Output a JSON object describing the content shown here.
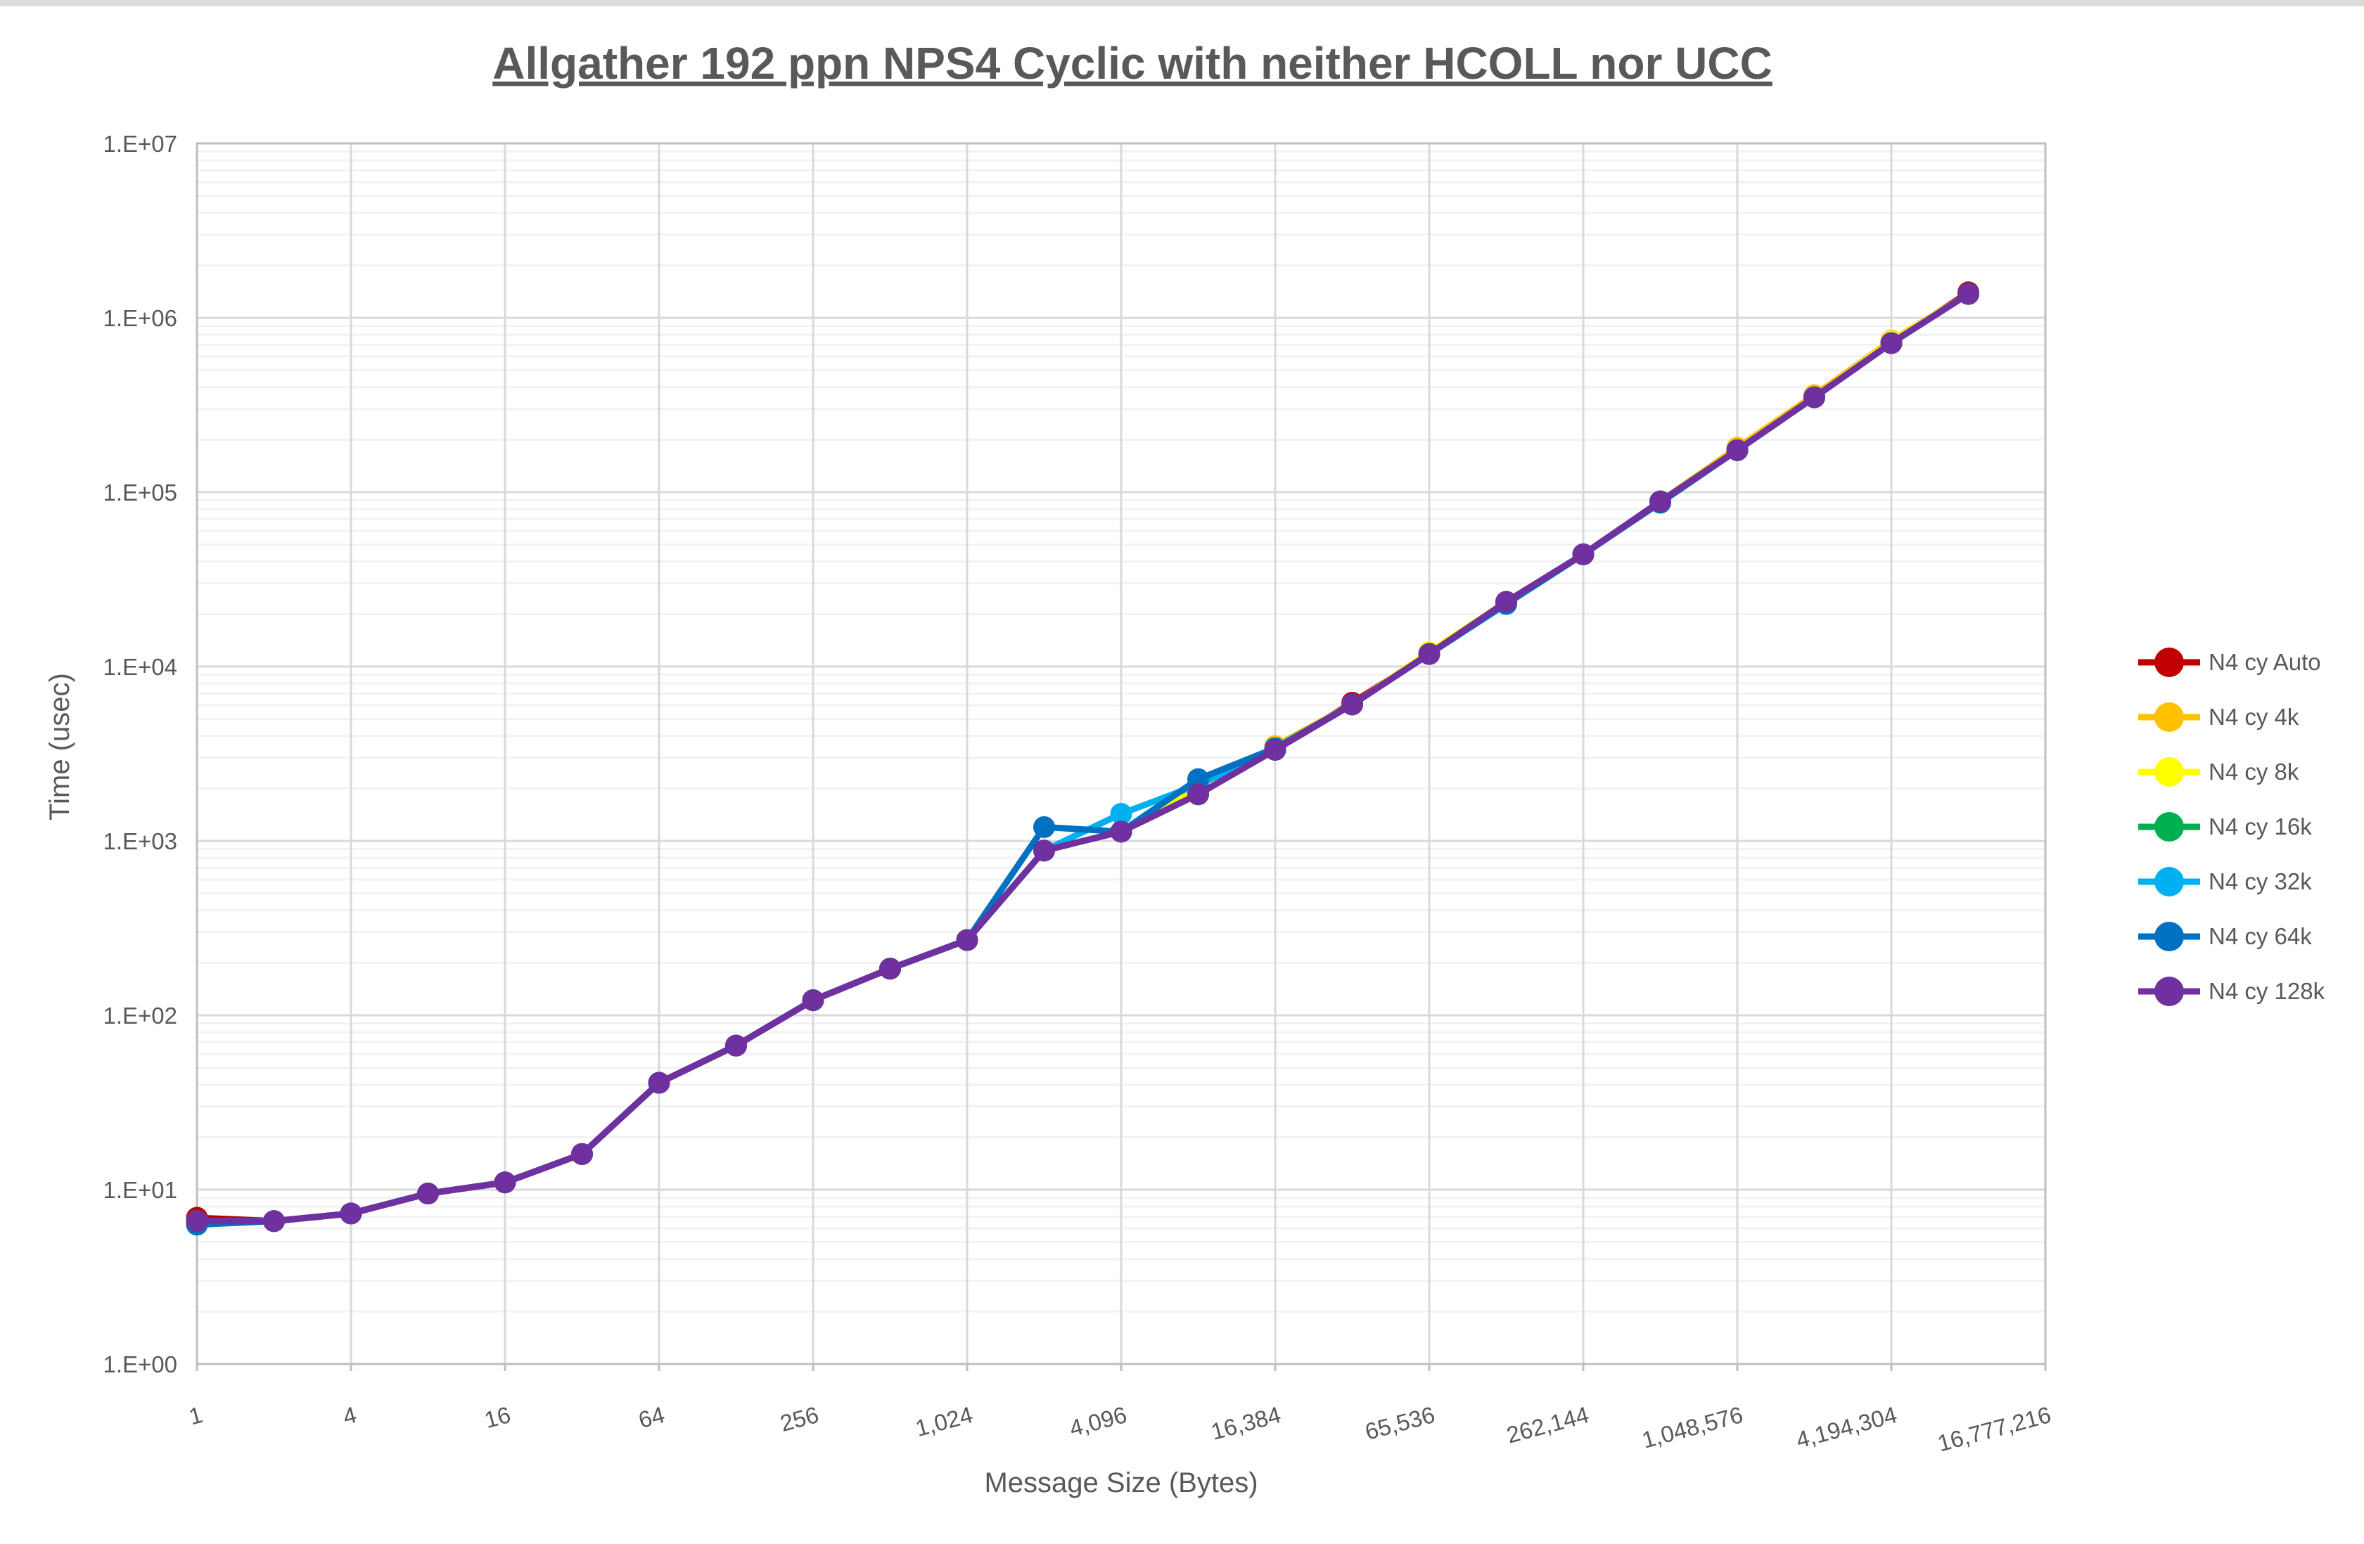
{
  "page": {
    "background": "#FFFFFF",
    "top_strip_color": "#DBDBDB"
  },
  "styles": {
    "text_color": "#595959",
    "major_grid_color": "#D9D9D9",
    "minor_grid_color": "#F2F2F2",
    "axis_line_color": "#BFBFBF"
  },
  "chart_data": {
    "type": "line",
    "title": "Allgather 192 ppn NPS4 Cyclic with neither HCOLL nor UCC",
    "xlabel": "Message Size (Bytes)",
    "ylabel": "Time (usec)",
    "x_scale": "log2",
    "y_scale": "log10",
    "xlim": [
      1,
      16777216
    ],
    "ylim": [
      1,
      10000000
    ],
    "grid": {
      "y_minor": true,
      "y_major": true,
      "x_major": true
    },
    "legend_position": "right",
    "x_tick_labels": [
      "1",
      "4",
      "16",
      "64",
      "256",
      "1,024",
      "4,096",
      "16,384",
      "65,536",
      "262,144",
      "1,048,576",
      "4,194,304",
      "16,777,216"
    ],
    "y_tick_labels": [
      "1.E+00",
      "1.E+01",
      "1.E+02",
      "1.E+03",
      "1.E+04",
      "1.E+05",
      "1.E+06",
      "1.E+07"
    ],
    "x": [
      1,
      2,
      4,
      8,
      16,
      32,
      64,
      128,
      256,
      512,
      1024,
      2048,
      4096,
      8192,
      16384,
      32768,
      65536,
      131072,
      262144,
      524288,
      1048576,
      2097152,
      4194304,
      8388608
    ],
    "series": [
      {
        "name": "N4 cy Auto",
        "color": "#C00000",
        "values": [
          6.9,
          6.6,
          7.3,
          9.5,
          11,
          16,
          41,
          67,
          122,
          185,
          270,
          880,
          1130,
          1850,
          3330,
          6200,
          11800,
          23500,
          44000,
          88500,
          174000,
          350000,
          716000,
          1400000
        ]
      },
      {
        "name": "N4 cy 4k",
        "color": "#FFC000",
        "values": [
          6.6,
          6.6,
          7.3,
          9.5,
          11,
          16,
          41,
          67,
          122,
          185,
          270,
          880,
          1130,
          1850,
          3500,
          6060,
          11800,
          23500,
          44000,
          88500,
          180000,
          360000,
          740000,
          1370000
        ]
      },
      {
        "name": "N4 cy 8k",
        "color": "#FFFF00",
        "values": [
          6.6,
          6.6,
          7.3,
          9.5,
          11,
          16,
          41,
          67,
          122,
          185,
          270,
          880,
          1130,
          2000,
          3330,
          6060,
          12100,
          23500,
          44000,
          88500,
          174000,
          350000,
          730000,
          1370000
        ]
      },
      {
        "name": "N4 cy 16k",
        "color": "#00B050",
        "values": [
          6.6,
          6.6,
          7.3,
          9.5,
          11,
          16,
          41,
          67,
          122,
          185,
          270,
          880,
          1130,
          1850,
          3330,
          6060,
          11800,
          23500,
          44000,
          88500,
          174000,
          350000,
          716000,
          1370000
        ]
      },
      {
        "name": "N4 cy 32k",
        "color": "#00B0F0",
        "values": [
          6.6,
          6.6,
          7.3,
          9.5,
          11,
          16,
          41,
          67,
          122,
          185,
          270,
          880,
          1430,
          2100,
          3330,
          6060,
          11800,
          22800,
          44000,
          88500,
          174000,
          350000,
          716000,
          1370000
        ]
      },
      {
        "name": "N4 cy 64k",
        "color": "#0070C0",
        "values": [
          6.3,
          6.6,
          7.3,
          9.5,
          11,
          16,
          41,
          67,
          122,
          185,
          270,
          1200,
          1130,
          2260,
          3400,
          6060,
          11800,
          23000,
          44000,
          87000,
          174000,
          350000,
          716000,
          1370000
        ]
      },
      {
        "name": "N4 cy 128k",
        "color": "#7030A0",
        "values": [
          6.6,
          6.6,
          7.3,
          9.5,
          11,
          16,
          41,
          67,
          122,
          185,
          270,
          880,
          1130,
          1850,
          3330,
          6060,
          11800,
          23500,
          44000,
          88500,
          174000,
          350000,
          716000,
          1370000
        ]
      }
    ]
  }
}
